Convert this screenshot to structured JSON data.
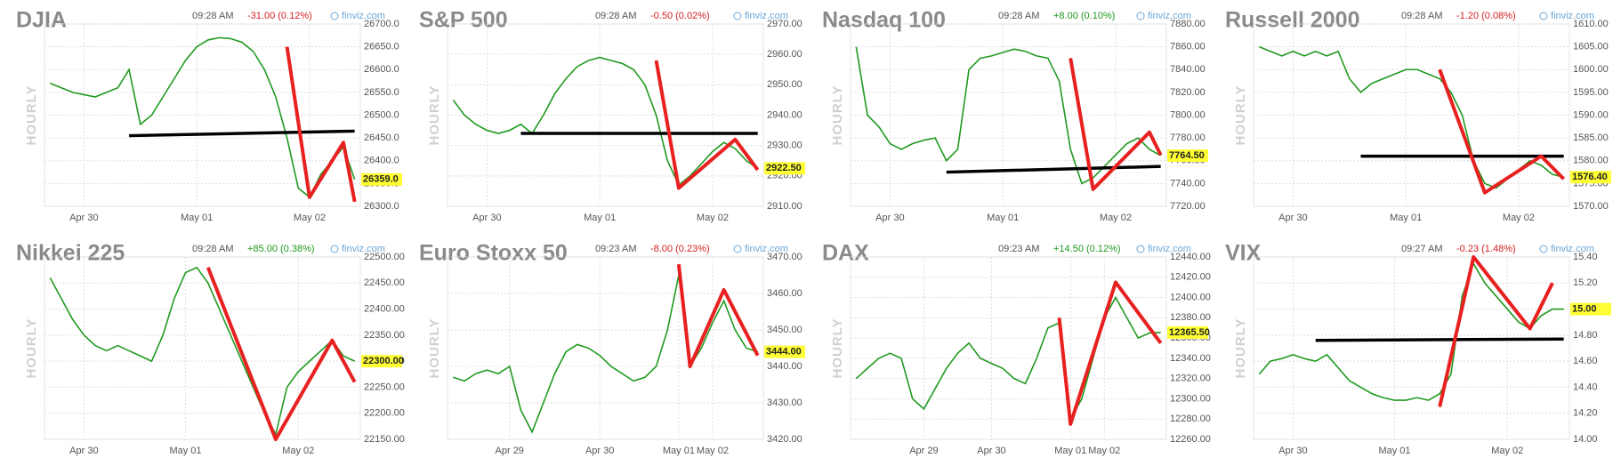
{
  "chart_data": [
    {
      "type": "line",
      "title": "DJIA",
      "time": "09:28 AM",
      "change": "-31.00 (0.12%)",
      "change_color": "#d62020",
      "source": "finviz.com",
      "axis_label": "HOURLY",
      "color": "#1f9a1f",
      "categories": [
        null,
        null,
        null,
        "Apr 30",
        null,
        null,
        null,
        null,
        null,
        null,
        null,
        null,
        null,
        "May 01",
        null,
        null,
        null,
        null,
        null,
        null,
        null,
        null,
        null,
        "May 02",
        null,
        null,
        null,
        null
      ],
      "values": [
        26570,
        26560,
        26550,
        26545,
        26540,
        26550,
        26560,
        26600,
        26480,
        26500,
        26540,
        26580,
        26620,
        26650,
        26665,
        26670,
        26668,
        26660,
        26640,
        26600,
        26540,
        26450,
        26340,
        26320,
        26370,
        26400,
        26430,
        26359
      ],
      "ylim": [
        26300,
        26700
      ],
      "yticks": [
        {
          "value": 26300,
          "label": "26300.0"
        },
        {
          "value": 26350,
          "label": "26350.0"
        },
        {
          "value": 26400,
          "label": "26400.0"
        },
        {
          "value": 26450,
          "label": "26450.0"
        },
        {
          "value": 26500,
          "label": "26500.0"
        },
        {
          "value": 26550,
          "label": "26550.0"
        },
        {
          "value": 26600,
          "label": "26600.0"
        },
        {
          "value": 26650,
          "label": "26650.0"
        },
        {
          "value": 26700,
          "label": "26700.0"
        }
      ],
      "last": {
        "value": 26359,
        "label": "26359.0"
      },
      "trendlines": [
        {
          "color": "#000000",
          "points": [
            [
              7,
              26455
            ],
            [
              27,
              26465
            ]
          ]
        },
        {
          "color": "#e82020",
          "points": [
            [
              21,
              26650
            ],
            [
              23,
              26320
            ],
            [
              26,
              26440
            ],
            [
              27,
              26310
            ]
          ]
        }
      ]
    },
    {
      "type": "line",
      "title": "S&P 500",
      "time": "09:28 AM",
      "change": "-0.50 (0.02%)",
      "change_color": "#d62020",
      "source": "finviz.com",
      "axis_label": "HOURLY",
      "color": "#1f9a1f",
      "categories": [
        null,
        null,
        null,
        "Apr 30",
        null,
        null,
        null,
        null,
        null,
        null,
        null,
        null,
        null,
        "May 01",
        null,
        null,
        null,
        null,
        null,
        null,
        null,
        null,
        null,
        "May 02",
        null,
        null,
        null,
        null
      ],
      "values": [
        2945,
        2940,
        2937,
        2935,
        2934,
        2935,
        2937,
        2934,
        2940,
        2947,
        2952,
        2956,
        2958,
        2959,
        2958,
        2957,
        2955,
        2950,
        2940,
        2925,
        2917,
        2920,
        2924,
        2928,
        2931,
        2929,
        2925,
        2922.5
      ],
      "ylim": [
        2910,
        2970
      ],
      "yticks": [
        {
          "value": 2910,
          "label": "2910.00"
        },
        {
          "value": 2920,
          "label": "2920.00"
        },
        {
          "value": 2930,
          "label": "2930.00"
        },
        {
          "value": 2940,
          "label": "2940.00"
        },
        {
          "value": 2950,
          "label": "2950.00"
        },
        {
          "value": 2960,
          "label": "2960.00"
        },
        {
          "value": 2970,
          "label": "2970.00"
        }
      ],
      "last": {
        "value": 2922.5,
        "label": "2922.50"
      },
      "trendlines": [
        {
          "color": "#000000",
          "points": [
            [
              6,
              2934
            ],
            [
              27,
              2934
            ]
          ]
        },
        {
          "color": "#e82020",
          "points": [
            [
              18,
              2958
            ],
            [
              20,
              2916
            ],
            [
              25,
              2932
            ],
            [
              27,
              2922
            ]
          ]
        }
      ]
    },
    {
      "type": "line",
      "title": "Nasdaq 100",
      "time": "09:28 AM",
      "change": "+8.00 (0.10%)",
      "change_color": "#1f9a1f",
      "source": "finviz.com",
      "axis_label": "HOURLY",
      "color": "#1f9a1f",
      "categories": [
        null,
        null,
        null,
        "Apr 30",
        null,
        null,
        null,
        null,
        null,
        null,
        null,
        null,
        null,
        "May 01",
        null,
        null,
        null,
        null,
        null,
        null,
        null,
        null,
        null,
        "May 02",
        null,
        null,
        null,
        null
      ],
      "values": [
        7860,
        7800,
        7790,
        7775,
        7770,
        7775,
        7778,
        7780,
        7760,
        7770,
        7840,
        7850,
        7852,
        7855,
        7858,
        7856,
        7852,
        7850,
        7830,
        7770,
        7740,
        7745,
        7755,
        7765,
        7775,
        7780,
        7770,
        7764.5
      ],
      "ylim": [
        7720,
        7880
      ],
      "yticks": [
        {
          "value": 7720,
          "label": "7720.00"
        },
        {
          "value": 7740,
          "label": "7740.00"
        },
        {
          "value": 7760,
          "label": "7760.00"
        },
        {
          "value": 7780,
          "label": "7780.00"
        },
        {
          "value": 7800,
          "label": "7800.00"
        },
        {
          "value": 7820,
          "label": "7820.00"
        },
        {
          "value": 7840,
          "label": "7840.00"
        },
        {
          "value": 7860,
          "label": "7860.00"
        },
        {
          "value": 7880,
          "label": "7880.00"
        }
      ],
      "last": {
        "value": 7764.5,
        "label": "7764.50"
      },
      "trendlines": [
        {
          "color": "#000000",
          "points": [
            [
              8,
              7750
            ],
            [
              27,
              7755
            ]
          ]
        },
        {
          "color": "#e82020",
          "points": [
            [
              19,
              7850
            ],
            [
              21,
              7735
            ],
            [
              26,
              7785
            ],
            [
              27,
              7765
            ]
          ]
        }
      ]
    },
    {
      "type": "line",
      "title": "Russell 2000",
      "time": "09:28 AM",
      "change": "-1.20 (0.08%)",
      "change_color": "#d62020",
      "source": "finviz.com",
      "axis_label": "HOURLY",
      "color": "#1f9a1f",
      "categories": [
        null,
        null,
        null,
        "Apr 30",
        null,
        null,
        null,
        null,
        null,
        null,
        null,
        null,
        null,
        "May 01",
        null,
        null,
        null,
        null,
        null,
        null,
        null,
        null,
        null,
        "May 02",
        null,
        null,
        null,
        null
      ],
      "values": [
        1605,
        1604,
        1603,
        1604,
        1603,
        1604,
        1603,
        1604,
        1598,
        1595,
        1597,
        1598,
        1599,
        1600,
        1600,
        1599,
        1598,
        1595,
        1590,
        1580,
        1575,
        1574,
        1576,
        1578,
        1580,
        1579,
        1577,
        1576.4
      ],
      "ylim": [
        1570,
        1610
      ],
      "yticks": [
        {
          "value": 1570,
          "label": "1570.00"
        },
        {
          "value": 1575,
          "label": "1575.00"
        },
        {
          "value": 1580,
          "label": "1580.00"
        },
        {
          "value": 1585,
          "label": "1585.00"
        },
        {
          "value": 1590,
          "label": "1590.00"
        },
        {
          "value": 1595,
          "label": "1595.00"
        },
        {
          "value": 1600,
          "label": "1600.00"
        },
        {
          "value": 1605,
          "label": "1605.00"
        },
        {
          "value": 1610,
          "label": "1610.00"
        }
      ],
      "last": {
        "value": 1576.4,
        "label": "1576.40"
      },
      "trendlines": [
        {
          "color": "#000000",
          "points": [
            [
              9,
              1581
            ],
            [
              27,
              1581
            ]
          ]
        },
        {
          "color": "#e82020",
          "points": [
            [
              16,
              1600
            ],
            [
              20,
              1573
            ],
            [
              25,
              1581
            ],
            [
              27,
              1576
            ]
          ]
        }
      ]
    },
    {
      "type": "line",
      "title": "Nikkei 225",
      "time": "09:28 AM",
      "change": "+85.00 (0.38%)",
      "change_color": "#1f9a1f",
      "source": "finviz.com",
      "axis_label": "HOURLY",
      "color": "#1f9a1f",
      "categories": [
        null,
        null,
        null,
        "Apr 30",
        null,
        null,
        null,
        null,
        null,
        null,
        null,
        null,
        "May 01",
        null,
        null,
        null,
        null,
        null,
        null,
        null,
        null,
        null,
        "May 02",
        null,
        null,
        null,
        null,
        null
      ],
      "values": [
        22460,
        22420,
        22380,
        22350,
        22330,
        22320,
        22330,
        22320,
        22310,
        22300,
        22350,
        22420,
        22470,
        22480,
        22450,
        22400,
        22350,
        22300,
        22250,
        22200,
        22160,
        22250,
        22280,
        22300,
        22320,
        22340,
        22310,
        22300
      ],
      "ylim": [
        22150,
        22500
      ],
      "yticks": [
        {
          "value": 22150,
          "label": "22150.00"
        },
        {
          "value": 22200,
          "label": "22200.00"
        },
        {
          "value": 22250,
          "label": "22250.00"
        },
        {
          "value": 22300,
          "label": "22300.00"
        },
        {
          "value": 22350,
          "label": "22350.00"
        },
        {
          "value": 22400,
          "label": "22400.00"
        },
        {
          "value": 22450,
          "label": "22450.00"
        },
        {
          "value": 22500,
          "label": "22500.00"
        }
      ],
      "last": {
        "value": 22300,
        "label": "22300.00"
      },
      "trendlines": [
        {
          "color": "#e82020",
          "points": [
            [
              14,
              22480
            ],
            [
              20,
              22150
            ],
            [
              25,
              22340
            ],
            [
              27,
              22260
            ]
          ]
        }
      ]
    },
    {
      "type": "line",
      "title": "Euro Stoxx 50",
      "time": "09:23 AM",
      "change": "-8.00 (0.23%)",
      "change_color": "#d62020",
      "source": "finviz.com",
      "axis_label": "HOURLY",
      "color": "#1f9a1f",
      "categories": [
        null,
        null,
        null,
        null,
        null,
        "Apr 29",
        null,
        null,
        null,
        null,
        null,
        null,
        null,
        "Apr 30",
        null,
        null,
        null,
        null,
        null,
        null,
        "May 01",
        null,
        null,
        "May 02",
        null,
        null,
        null,
        null
      ],
      "values": [
        3437,
        3436,
        3438,
        3439,
        3438,
        3440,
        3428,
        3422,
        3430,
        3438,
        3444,
        3446,
        3445,
        3443,
        3440,
        3438,
        3436,
        3437,
        3440,
        3450,
        3465,
        3440,
        3445,
        3452,
        3458,
        3450,
        3445,
        3444
      ],
      "ylim": [
        3420,
        3470
      ],
      "yticks": [
        {
          "value": 3420,
          "label": "3420.00"
        },
        {
          "value": 3430,
          "label": "3430.00"
        },
        {
          "value": 3440,
          "label": "3440.00"
        },
        {
          "value": 3450,
          "label": "3450.00"
        },
        {
          "value": 3460,
          "label": "3460.00"
        },
        {
          "value": 3470,
          "label": "3470.00"
        }
      ],
      "last": {
        "value": 3444,
        "label": "3444.00"
      },
      "trendlines": [
        {
          "color": "#e82020",
          "points": [
            [
              20,
              3468
            ],
            [
              21,
              3440
            ],
            [
              24,
              3461
            ],
            [
              27,
              3443
            ]
          ]
        }
      ]
    },
    {
      "type": "line",
      "title": "DAX",
      "time": "09:23 AM",
      "change": "+14.50 (0.12%)",
      "change_color": "#1f9a1f",
      "source": "finviz.com",
      "axis_label": "HOURLY",
      "color": "#1f9a1f",
      "categories": [
        null,
        null,
        null,
        null,
        null,
        null,
        "Apr 29",
        null,
        null,
        null,
        null,
        null,
        "Apr 30",
        null,
        null,
        null,
        null,
        null,
        null,
        "May 01",
        null,
        null,
        "May 02",
        null,
        null,
        null,
        null,
        null
      ],
      "values": [
        12320,
        12330,
        12340,
        12345,
        12340,
        12300,
        12290,
        12310,
        12330,
        12345,
        12355,
        12340,
        12335,
        12330,
        12320,
        12315,
        12340,
        12370,
        12375,
        12280,
        12300,
        12340,
        12380,
        12400,
        12380,
        12360,
        12365,
        12365.5
      ],
      "ylim": [
        12260,
        12440
      ],
      "yticks": [
        {
          "value": 12260,
          "label": "12260.00"
        },
        {
          "value": 12280,
          "label": "12280.00"
        },
        {
          "value": 12300,
          "label": "12300.00"
        },
        {
          "value": 12320,
          "label": "12320.00"
        },
        {
          "value": 12340,
          "label": "12340.00"
        },
        {
          "value": 12360,
          "label": "12360.00"
        },
        {
          "value": 12380,
          "label": "12380.00"
        },
        {
          "value": 12400,
          "label": "12400.00"
        },
        {
          "value": 12420,
          "label": "12420.00"
        },
        {
          "value": 12440,
          "label": "12440.00"
        }
      ],
      "last": {
        "value": 12365.5,
        "label": "12365.50"
      },
      "trendlines": [
        {
          "color": "#e82020",
          "points": [
            [
              18,
              12380
            ],
            [
              19,
              12275
            ],
            [
              23,
              12415
            ],
            [
              27,
              12355
            ]
          ]
        }
      ]
    },
    {
      "type": "line",
      "title": "VIX",
      "time": "09:27 AM",
      "change": "-0.23 (1.48%)",
      "change_color": "#d62020",
      "source": "finviz.com",
      "axis_label": "HOURLY",
      "color": "#1f9a1f",
      "categories": [
        null,
        null,
        null,
        "Apr 30",
        null,
        null,
        null,
        null,
        null,
        null,
        null,
        null,
        "May 01",
        null,
        null,
        null,
        null,
        null,
        null,
        null,
        null,
        null,
        "May 02",
        null,
        null,
        null,
        null,
        null
      ],
      "values": [
        14.5,
        14.6,
        14.62,
        14.65,
        14.62,
        14.6,
        14.65,
        14.55,
        14.45,
        14.4,
        14.35,
        14.32,
        14.3,
        14.3,
        14.32,
        14.3,
        14.35,
        14.5,
        15.1,
        15.35,
        15.2,
        15.1,
        15,
        14.9,
        14.85,
        14.95,
        15,
        15
      ],
      "ylim": [
        14,
        15.4
      ],
      "yticks": [
        {
          "value": 14,
          "label": "14.00"
        },
        {
          "value": 14.2,
          "label": "14.20"
        },
        {
          "value": 14.4,
          "label": "14.40"
        },
        {
          "value": 14.6,
          "label": "14.60"
        },
        {
          "value": 14.8,
          "label": "14.80"
        },
        {
          "value": 15,
          "label": "15.00"
        },
        {
          "value": 15.2,
          "label": "15.20"
        },
        {
          "value": 15.4,
          "label": "15.40"
        }
      ],
      "last": {
        "value": 15,
        "label": "15.00"
      },
      "trendlines": [
        {
          "color": "#000000",
          "points": [
            [
              5,
              14.76
            ],
            [
              27,
              14.77
            ]
          ]
        },
        {
          "color": "#e82020",
          "points": [
            [
              16,
              14.25
            ],
            [
              19,
              15.4
            ],
            [
              24,
              14.85
            ],
            [
              26,
              15.2
            ]
          ]
        }
      ]
    }
  ]
}
